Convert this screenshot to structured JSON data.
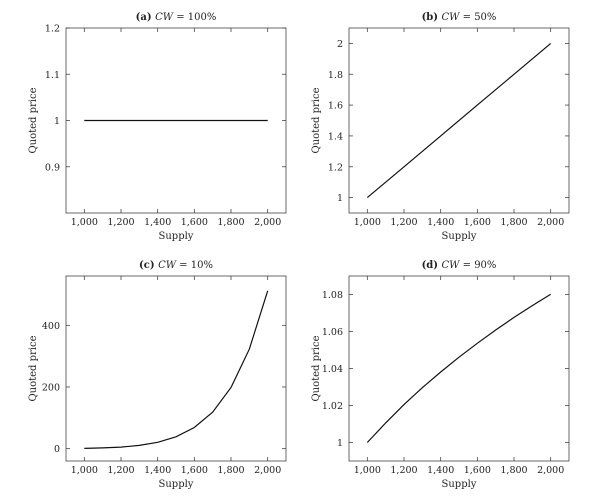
{
  "chart_data": [
    {
      "type": "line",
      "panel": "(a)",
      "title_var": "CW",
      "title_val": "= 100%",
      "xlabel": "Supply",
      "ylabel": "Quoted price",
      "xlim": [
        900,
        2100
      ],
      "ylim": [
        0.8,
        1.2
      ],
      "x_ticks": [
        1000,
        1200,
        1400,
        1600,
        1800,
        2000
      ],
      "x_tick_labels": [
        "1,000",
        "1,200",
        "1,400",
        "1,600",
        "1,800",
        "2,000"
      ],
      "y_ticks": [
        0.9,
        1,
        1.1,
        1.2
      ],
      "y_tick_labels": [
        "0.9",
        "1",
        "1.1",
        "1.2"
      ],
      "series": [
        {
          "x": [
            1000,
            2000
          ],
          "y": [
            1,
            1
          ]
        }
      ]
    },
    {
      "type": "line",
      "panel": "(b)",
      "title_var": "CW",
      "title_val": "= 50%",
      "xlabel": "Supply",
      "ylabel": "Quoted price",
      "xlim": [
        900,
        2100
      ],
      "ylim": [
        0.9,
        2.1
      ],
      "x_ticks": [
        1000,
        1200,
        1400,
        1600,
        1800,
        2000
      ],
      "x_tick_labels": [
        "1,000",
        "1,200",
        "1,400",
        "1,600",
        "1,800",
        "2,000"
      ],
      "y_ticks": [
        1,
        1.2,
        1.4,
        1.6,
        1.8,
        2
      ],
      "y_tick_labels": [
        "1",
        "1.2",
        "1.4",
        "1.6",
        "1.8",
        "2"
      ],
      "series": [
        {
          "x": [
            1000,
            1200,
            1400,
            1600,
            1800,
            2000
          ],
          "y": [
            1,
            1.2,
            1.4,
            1.6,
            1.8,
            2
          ]
        }
      ]
    },
    {
      "type": "line",
      "panel": "(c)",
      "title_var": "CW",
      "title_val": "= 10%",
      "xlabel": "Supply",
      "ylabel": "Quoted price",
      "xlim": [
        900,
        2100
      ],
      "ylim": [
        -40,
        560
      ],
      "x_ticks": [
        1000,
        1200,
        1400,
        1600,
        1800,
        2000
      ],
      "x_tick_labels": [
        "1,000",
        "1,200",
        "1,400",
        "1,600",
        "1,800",
        "2,000"
      ],
      "y_ticks": [
        0,
        200,
        400
      ],
      "y_tick_labels": [
        "0",
        "200",
        "400"
      ],
      "series": [
        {
          "x": [
            1000,
            1100,
            1200,
            1300,
            1400,
            1500,
            1600,
            1700,
            1800,
            1900,
            2000
          ],
          "y": [
            1,
            2.4,
            5.2,
            10.6,
            20.7,
            38.4,
            68.7,
            118.6,
            198.4,
            322.7,
            512
          ]
        }
      ]
    },
    {
      "type": "line",
      "panel": "(d)",
      "title_var": "CW",
      "title_val": "= 90%",
      "xlabel": "Supply",
      "ylabel": "Quoted price",
      "xlim": [
        900,
        2100
      ],
      "ylim": [
        0.99,
        1.09
      ],
      "x_ticks": [
        1000,
        1200,
        1400,
        1600,
        1800,
        2000
      ],
      "x_tick_labels": [
        "1,000",
        "1,200",
        "1,400",
        "1,600",
        "1,800",
        "2,000"
      ],
      "y_ticks": [
        1,
        1.02,
        1.04,
        1.06,
        1.08
      ],
      "y_tick_labels": [
        "1",
        "1.02",
        "1.04",
        "1.06",
        "1.08"
      ],
      "series": [
        {
          "x": [
            1000,
            1100,
            1200,
            1300,
            1400,
            1500,
            1600,
            1700,
            1800,
            1900,
            2000
          ],
          "y": [
            1,
            1.0106,
            1.0205,
            1.0296,
            1.0381,
            1.0461,
            1.0536,
            1.0608,
            1.0676,
            1.074,
            1.0801
          ]
        }
      ]
    }
  ]
}
